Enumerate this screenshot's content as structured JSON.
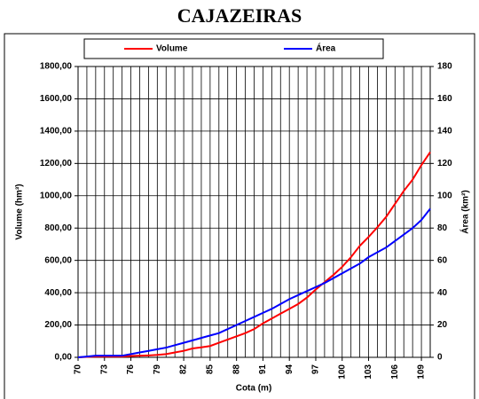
{
  "chart_data": {
    "type": "line",
    "title": "CAJAZEIRAS",
    "xlabel": "Cota (m)",
    "ylabel": "Volume (hm³)",
    "y2label": "Área (km²)",
    "x": [
      70,
      71,
      72,
      73,
      74,
      75,
      76,
      77,
      78,
      79,
      80,
      81,
      82,
      83,
      84,
      85,
      86,
      87,
      88,
      89,
      90,
      91,
      92,
      93,
      94,
      95,
      96,
      97,
      98,
      99,
      100,
      101,
      102,
      103,
      104,
      105,
      106,
      107,
      108,
      109,
      110
    ],
    "series": [
      {
        "name": "Volume",
        "color": "#ff0000",
        "axis": "y",
        "values": [
          0,
          3,
          5,
          5,
          5,
          5,
          8,
          10,
          12,
          15,
          20,
          30,
          40,
          55,
          62,
          70,
          90,
          110,
          130,
          150,
          175,
          210,
          240,
          270,
          300,
          330,
          370,
          420,
          465,
          510,
          560,
          620,
          690,
          745,
          805,
          870,
          950,
          1030,
          1100,
          1190,
          1270
        ]
      },
      {
        "name": "Área",
        "color": "#0000ff",
        "axis": "y2",
        "values": [
          0,
          0.5,
          1,
          1,
          1,
          1,
          2,
          3,
          4,
          5,
          6,
          7.5,
          9,
          10.5,
          12,
          13.5,
          15,
          17.5,
          20,
          22.5,
          25,
          27.5,
          30,
          33,
          36,
          38.5,
          41,
          43.5,
          46,
          49,
          52,
          55,
          58,
          62,
          65,
          68,
          72,
          76,
          80,
          85,
          92
        ]
      }
    ],
    "xlim": [
      70,
      110
    ],
    "xticks": [
      70,
      73,
      76,
      79,
      82,
      85,
      88,
      91,
      94,
      97,
      100,
      103,
      106,
      109
    ],
    "xminorticks": [
      70,
      71,
      72,
      73,
      74,
      75,
      76,
      77,
      78,
      79,
      80,
      81,
      82,
      83,
      84,
      85,
      86,
      87,
      88,
      89,
      90,
      91,
      92,
      93,
      94,
      95,
      96,
      97,
      98,
      99,
      100,
      101,
      102,
      103,
      104,
      105,
      106,
      107,
      108,
      109,
      110
    ],
    "ylim": [
      0,
      1800
    ],
    "yticks": [
      {
        "value": 0,
        "label": "0,00"
      },
      {
        "value": 200,
        "label": "200,00"
      },
      {
        "value": 400,
        "label": "400,00"
      },
      {
        "value": 600,
        "label": "600,00"
      },
      {
        "value": 800,
        "label": "800,00"
      },
      {
        "value": 1000,
        "label": "1000,00"
      },
      {
        "value": 1200,
        "label": "1200,00"
      },
      {
        "value": 1400,
        "label": "1400,00"
      },
      {
        "value": 1600,
        "label": "1600,00"
      },
      {
        "value": 1800,
        "label": "1800,00"
      }
    ],
    "y2lim": [
      0,
      180
    ],
    "y2ticks": [
      0,
      20,
      40,
      60,
      80,
      100,
      120,
      140,
      160,
      180
    ],
    "grid": true,
    "legend": "top"
  }
}
